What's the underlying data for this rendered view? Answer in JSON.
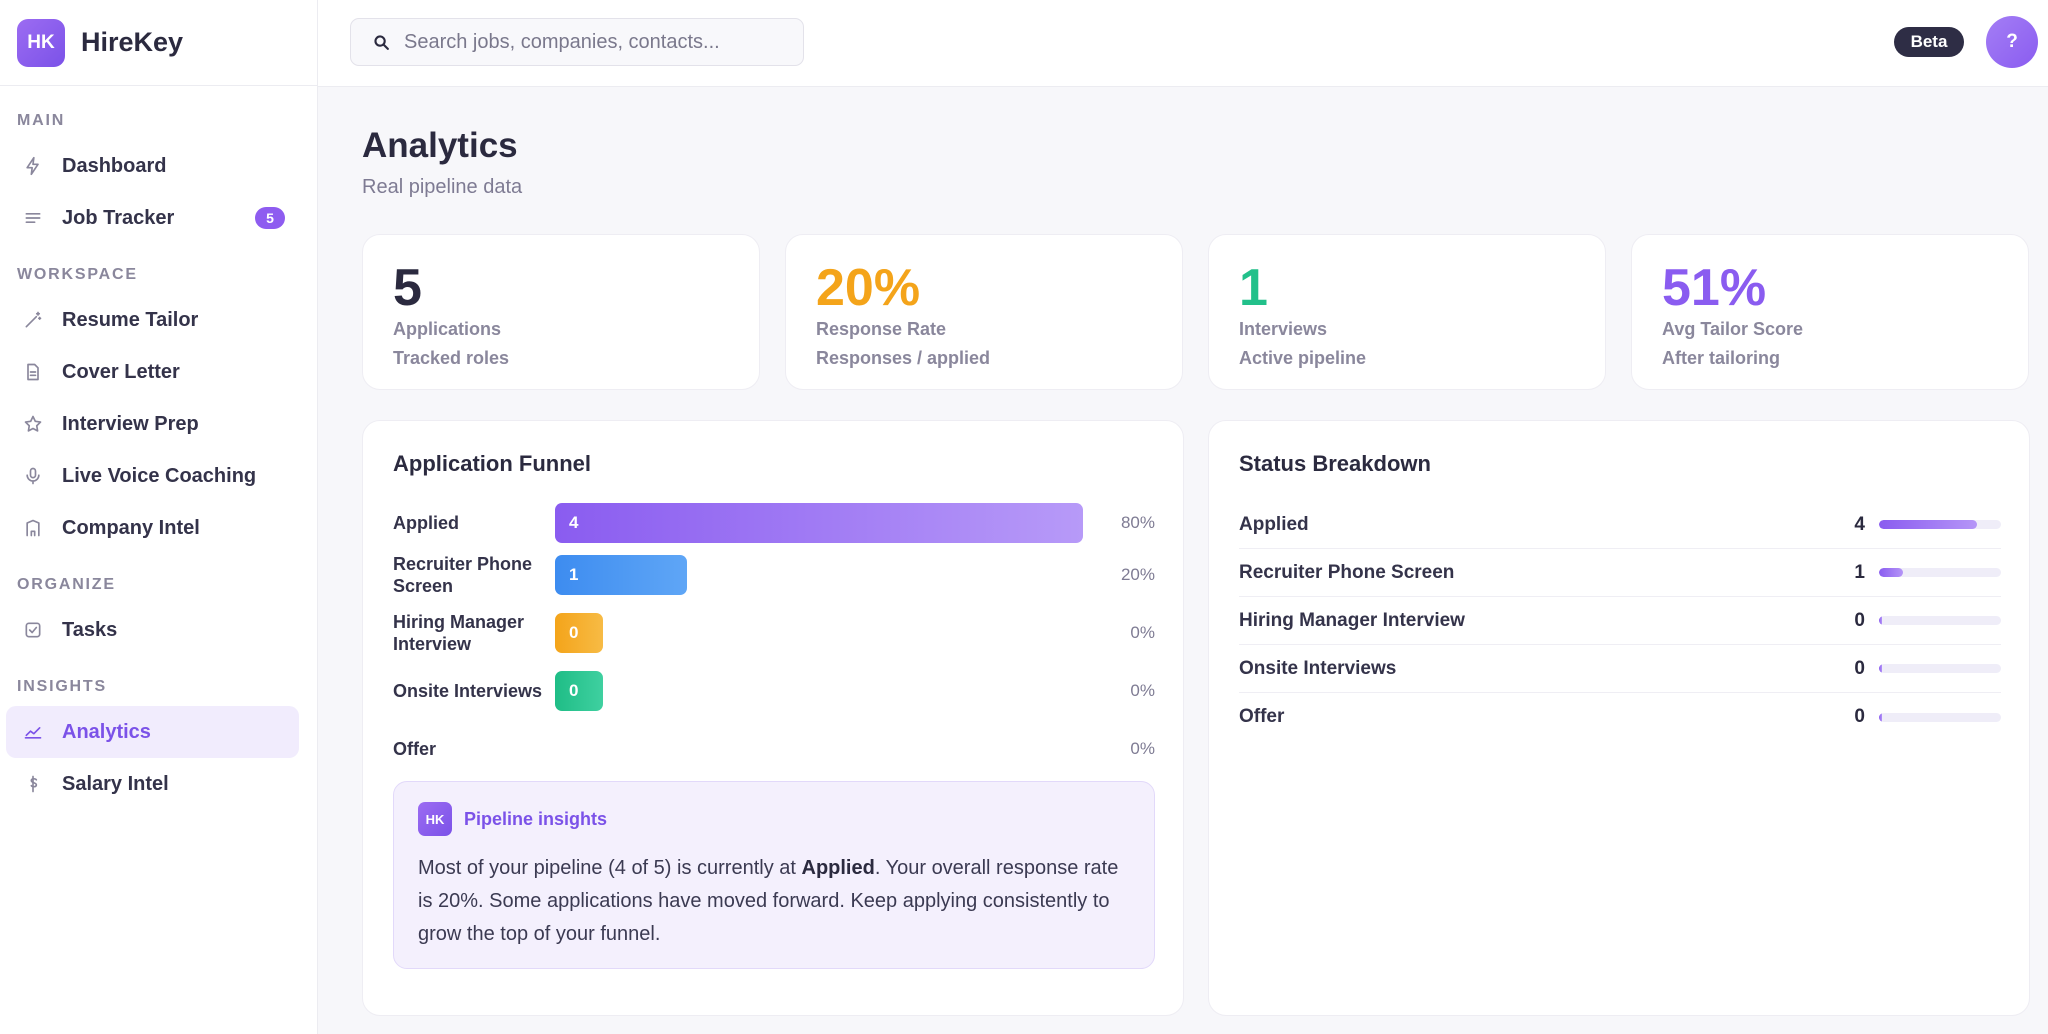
{
  "app": {
    "logo_text": "HK",
    "name": "HireKey"
  },
  "search": {
    "placeholder": "Search jobs, companies, contacts..."
  },
  "topbar": {
    "beta_label": "Beta",
    "help_label": "?"
  },
  "sidebar": {
    "sections": [
      {
        "heading": "MAIN",
        "items": [
          {
            "label": "Dashboard",
            "icon": "bolt-icon"
          },
          {
            "label": "Job Tracker",
            "icon": "list-icon",
            "badge": "5"
          }
        ]
      },
      {
        "heading": "WORKSPACE",
        "items": [
          {
            "label": "Resume Tailor",
            "icon": "wand-icon"
          },
          {
            "label": "Cover Letter",
            "icon": "document-icon"
          },
          {
            "label": "Interview Prep",
            "icon": "star-icon"
          },
          {
            "label": "Live Voice Coaching",
            "icon": "microphone-icon"
          },
          {
            "label": "Company Intel",
            "icon": "building-icon"
          }
        ]
      },
      {
        "heading": "ORGANIZE",
        "items": [
          {
            "label": "Tasks",
            "icon": "checkbox-icon"
          }
        ]
      },
      {
        "heading": "INSIGHTS",
        "items": [
          {
            "label": "Analytics",
            "icon": "trend-icon",
            "active": true
          },
          {
            "label": "Salary Intel",
            "icon": "dollar-icon"
          }
        ]
      }
    ]
  },
  "page": {
    "title": "Analytics",
    "subtitle": "Real pipeline data"
  },
  "stats": [
    {
      "value": "5",
      "label": "Applications",
      "sub": "Tracked roles",
      "color": "#2b2a3f"
    },
    {
      "value": "20%",
      "label": "Response Rate",
      "sub": "Responses / applied",
      "color": "#f4a41a"
    },
    {
      "value": "1",
      "label": "Interviews",
      "sub": "Active pipeline",
      "color": "#22c08a"
    },
    {
      "value": "51%",
      "label": "Avg Tailor Score",
      "sub": "After tailoring",
      "color": "#8a5cf0"
    }
  ],
  "funnel": {
    "title": "Application Funnel",
    "rows": [
      {
        "label": "Applied",
        "count": "4",
        "pct": "80%",
        "fraction": 0.8,
        "color_from": "#8a5cf0",
        "color_to": "#b79af8"
      },
      {
        "label": "Recruiter Phone Screen",
        "count": "1",
        "pct": "20%",
        "fraction": 0.2,
        "color_from": "#3d8cf0",
        "color_to": "#5fa6f6"
      },
      {
        "label": "Hiring Manager Interview",
        "count": "0",
        "pct": "0%",
        "fraction": 0,
        "color_from": "#f4a41a",
        "color_to": "#f7bb45"
      },
      {
        "label": "Onsite Interviews",
        "count": "0",
        "pct": "0%",
        "fraction": 0,
        "color_from": "#1fbd86",
        "color_to": "#3fd0a0"
      },
      {
        "label": "Offer",
        "count": "",
        "pct": "0%",
        "fraction": 0,
        "color_from": "",
        "color_to": ""
      }
    ]
  },
  "insight": {
    "logo_text": "HK",
    "title": "Pipeline insights",
    "text_before": "Most of your pipeline (4 of 5) is currently at ",
    "text_bold": "Applied",
    "text_after": ". Your overall response rate is 20%. Some applications have moved forward. Keep applying consistently to grow the top of your funnel."
  },
  "status": {
    "title": "Status Breakdown",
    "rows": [
      {
        "label": "Applied",
        "count": "4",
        "fraction": 0.8
      },
      {
        "label": "Recruiter Phone Screen",
        "count": "1",
        "fraction": 0.2
      },
      {
        "label": "Hiring Manager Interview",
        "count": "0",
        "fraction": 0
      },
      {
        "label": "Onsite Interviews",
        "count": "0",
        "fraction": 0
      },
      {
        "label": "Offer",
        "count": "0",
        "fraction": 0
      }
    ]
  }
}
